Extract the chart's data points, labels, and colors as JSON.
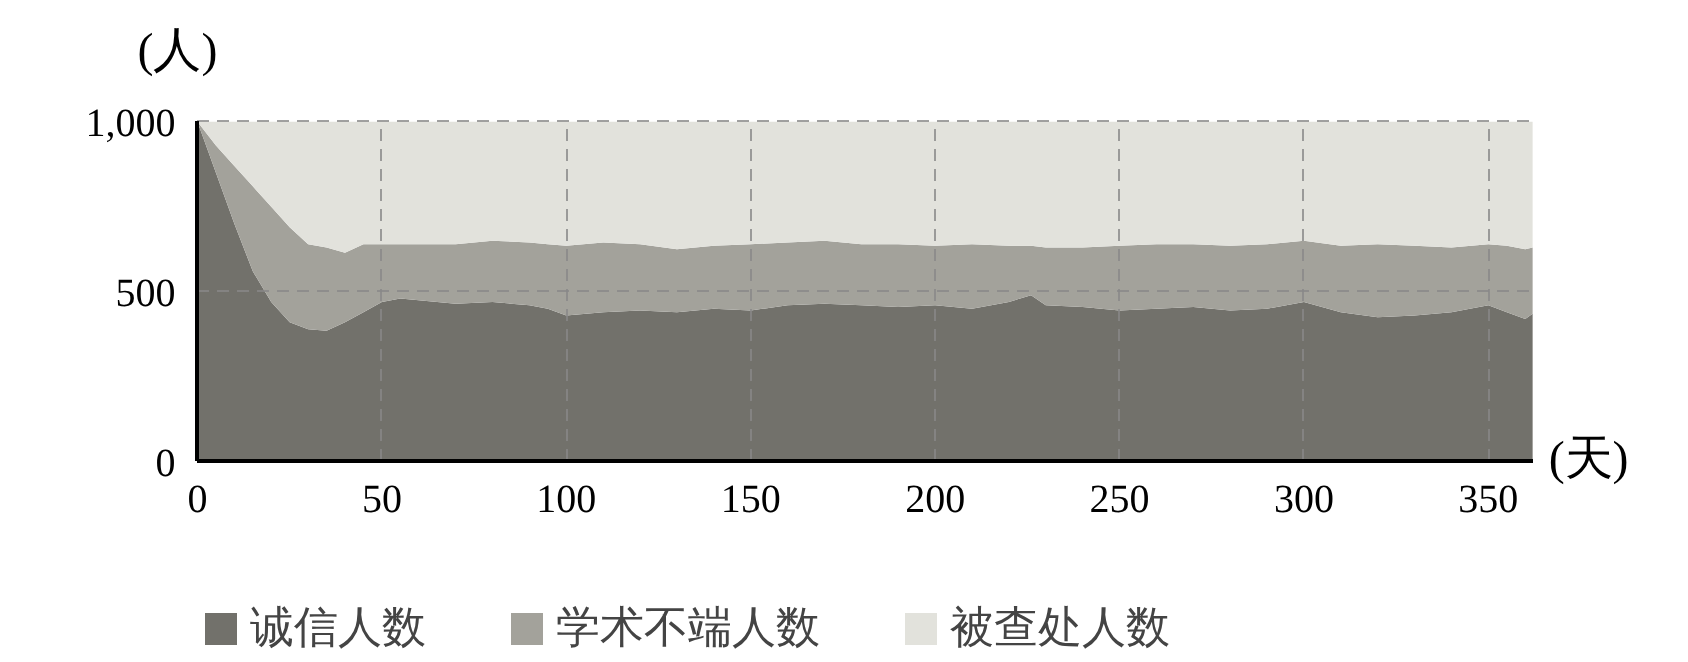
{
  "chart_data": {
    "type": "area",
    "stacked": true,
    "xlabel": "(天)",
    "ylabel": "(人)",
    "x": [
      0,
      5,
      10,
      15,
      20,
      25,
      30,
      35,
      40,
      45,
      50,
      55,
      60,
      70,
      80,
      90,
      95,
      100,
      110,
      120,
      130,
      140,
      150,
      160,
      170,
      180,
      190,
      200,
      210,
      220,
      226,
      230,
      240,
      250,
      260,
      270,
      280,
      290,
      300,
      310,
      320,
      330,
      340,
      350,
      355,
      360,
      362
    ],
    "series": [
      {
        "name": "诚信人数",
        "color": "#72716b",
        "values": [
          1000,
          850,
          700,
          560,
          470,
          410,
          390,
          385,
          410,
          440,
          470,
          480,
          475,
          465,
          470,
          460,
          450,
          430,
          440,
          445,
          440,
          450,
          445,
          460,
          465,
          460,
          455,
          460,
          450,
          470,
          490,
          460,
          455,
          445,
          450,
          455,
          445,
          450,
          470,
          440,
          425,
          430,
          440,
          460,
          440,
          420,
          435
        ]
      },
      {
        "name": "学术不端人数",
        "color": "#a3a29b",
        "values": [
          0,
          80,
          170,
          250,
          280,
          280,
          250,
          245,
          205,
          200,
          170,
          160,
          165,
          175,
          180,
          185,
          190,
          205,
          205,
          195,
          185,
          185,
          195,
          185,
          185,
          180,
          185,
          175,
          190,
          165,
          145,
          170,
          175,
          190,
          190,
          185,
          190,
          190,
          180,
          195,
          215,
          205,
          190,
          180,
          195,
          205,
          195
        ]
      },
      {
        "name": "被查处人数",
        "color": "#e2e2dc",
        "values": [
          0,
          70,
          130,
          190,
          250,
          310,
          360,
          370,
          385,
          360,
          360,
          360,
          360,
          360,
          350,
          355,
          360,
          365,
          355,
          360,
          375,
          365,
          360,
          355,
          350,
          360,
          360,
          365,
          360,
          365,
          365,
          370,
          370,
          365,
          360,
          360,
          365,
          360,
          350,
          365,
          360,
          365,
          370,
          360,
          365,
          375,
          370
        ]
      }
    ],
    "xlim": [
      0,
      362
    ],
    "ylim": [
      0,
      1000
    ],
    "xticks": [
      0,
      50,
      100,
      150,
      200,
      250,
      300,
      350
    ],
    "yticks": [
      0,
      500,
      {
        "value": 1000,
        "label": "1,000"
      }
    ],
    "grid": true,
    "legend": "bottom"
  }
}
